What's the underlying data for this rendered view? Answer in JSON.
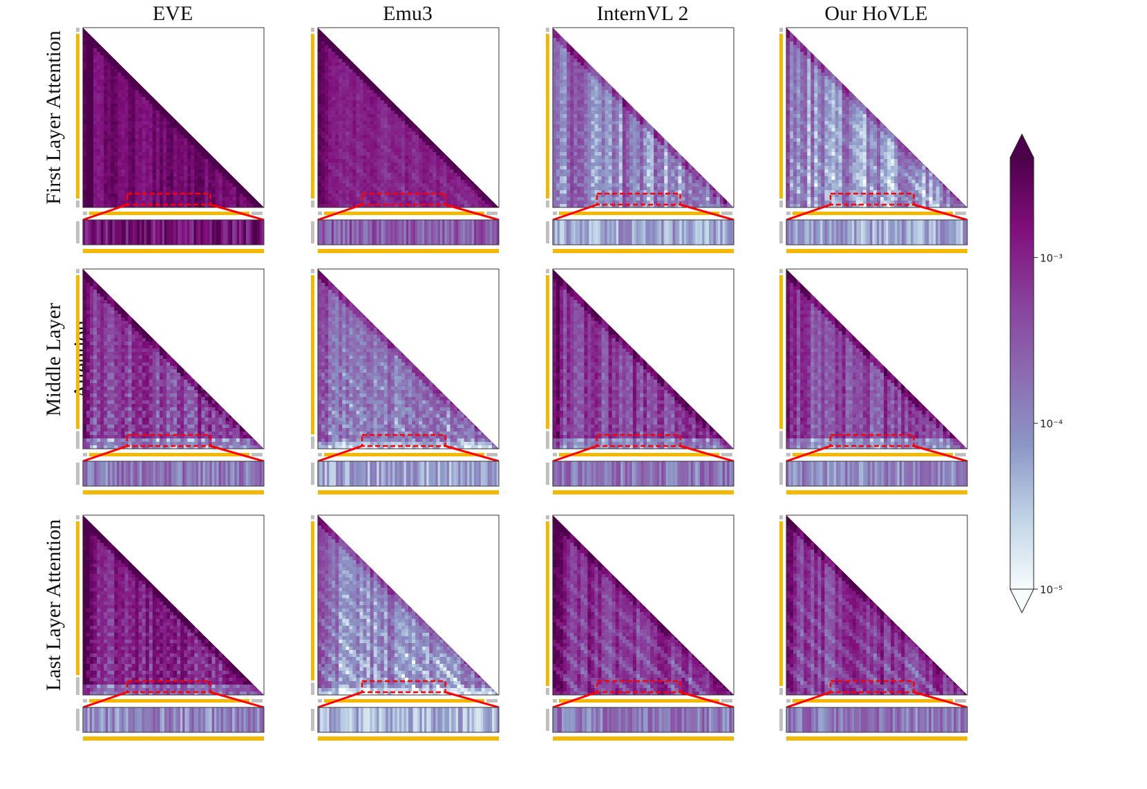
{
  "chart_data": {
    "type": "heatmap",
    "title": "",
    "description_type": "attention maps (lower-triangular, causal)",
    "columns": [
      "EVE",
      "Emu3",
      "InternVL 2",
      "Our HoVLE"
    ],
    "rows": [
      "First Layer Attention",
      "Middle Layer Attention",
      "Last Layer Attention"
    ],
    "colorbar": {
      "scale": "log",
      "range": [
        1e-05,
        0.004
      ],
      "ticks": [
        {
          "value": 0.001,
          "label": "10⁻³"
        },
        {
          "value": 0.0001,
          "label": "10⁻⁴"
        },
        {
          "value": 1e-05,
          "label": "10⁻⁵"
        }
      ],
      "extend": "both",
      "colors": [
        "#f7fcfd",
        "#bfd3e6",
        "#8c96c6",
        "#8c6bb1",
        "#88419d",
        "#810f7c",
        "#4d004b"
      ]
    },
    "markers": {
      "image_token_bar_color": "#f5b800",
      "text_token_bar_color": "#c0c0c0",
      "zoom_box_color": "#ff0000"
    },
    "panels": [
      [
        {
          "model": "EVE",
          "layer": "First",
          "mean_intensity": 0.88,
          "stripe_contrast": 0.15,
          "grid_pattern": 0.05,
          "diag_pattern": 0.05,
          "text_rows_fraction": 0.0,
          "zoom_intensity": 0.85
        },
        {
          "model": "Emu3",
          "layer": "First",
          "mean_intensity": 0.78,
          "stripe_contrast": 0.1,
          "grid_pattern": 0.05,
          "diag_pattern": 0.2,
          "text_rows_fraction": 0.0,
          "zoom_intensity": 0.55
        },
        {
          "model": "InternVL 2",
          "layer": "First",
          "mean_intensity": 0.45,
          "stripe_contrast": 0.45,
          "grid_pattern": 0.55,
          "diag_pattern": 0.1,
          "text_rows_fraction": 0.0,
          "zoom_intensity": 0.3
        },
        {
          "model": "Our HoVLE",
          "layer": "First",
          "mean_intensity": 0.4,
          "stripe_contrast": 0.4,
          "grid_pattern": 0.4,
          "diag_pattern": 0.45,
          "text_rows_fraction": 0.0,
          "zoom_intensity": 0.3
        }
      ],
      [
        {
          "model": "EVE",
          "layer": "Middle",
          "mean_intensity": 0.72,
          "stripe_contrast": 0.25,
          "grid_pattern": 0.7,
          "diag_pattern": 0.05,
          "text_rows_fraction": 0.06,
          "zoom_intensity": 0.45
        },
        {
          "model": "Emu3",
          "layer": "Middle",
          "mean_intensity": 0.5,
          "stripe_contrast": 0.2,
          "grid_pattern": 0.6,
          "diag_pattern": 0.4,
          "text_rows_fraction": 0.03,
          "zoom_intensity": 0.3
        },
        {
          "model": "InternVL 2",
          "layer": "Middle",
          "mean_intensity": 0.7,
          "stripe_contrast": 0.3,
          "grid_pattern": 0.45,
          "diag_pattern": 0.1,
          "text_rows_fraction": 0.06,
          "zoom_intensity": 0.45
        },
        {
          "model": "Our HoVLE",
          "layer": "Middle",
          "mean_intensity": 0.68,
          "stripe_contrast": 0.3,
          "grid_pattern": 0.4,
          "diag_pattern": 0.1,
          "text_rows_fraction": 0.06,
          "zoom_intensity": 0.4
        }
      ],
      [
        {
          "model": "EVE",
          "layer": "Last",
          "mean_intensity": 0.8,
          "stripe_contrast": 0.2,
          "grid_pattern": 0.6,
          "diag_pattern": 0.05,
          "text_rows_fraction": 0.06,
          "zoom_intensity": 0.4
        },
        {
          "model": "Emu3",
          "layer": "Last",
          "mean_intensity": 0.45,
          "stripe_contrast": 0.25,
          "grid_pattern": 0.55,
          "diag_pattern": 0.55,
          "text_rows_fraction": 0.03,
          "zoom_intensity": 0.25
        },
        {
          "model": "InternVL 2",
          "layer": "Last",
          "mean_intensity": 0.75,
          "stripe_contrast": 0.3,
          "grid_pattern": 0.2,
          "diag_pattern": 0.6,
          "text_rows_fraction": 0.0,
          "zoom_intensity": 0.45
        },
        {
          "model": "Our HoVLE",
          "layer": "Last",
          "mean_intensity": 0.72,
          "stripe_contrast": 0.3,
          "grid_pattern": 0.2,
          "diag_pattern": 0.6,
          "text_rows_fraction": 0.0,
          "zoom_intensity": 0.45
        }
      ]
    ]
  }
}
